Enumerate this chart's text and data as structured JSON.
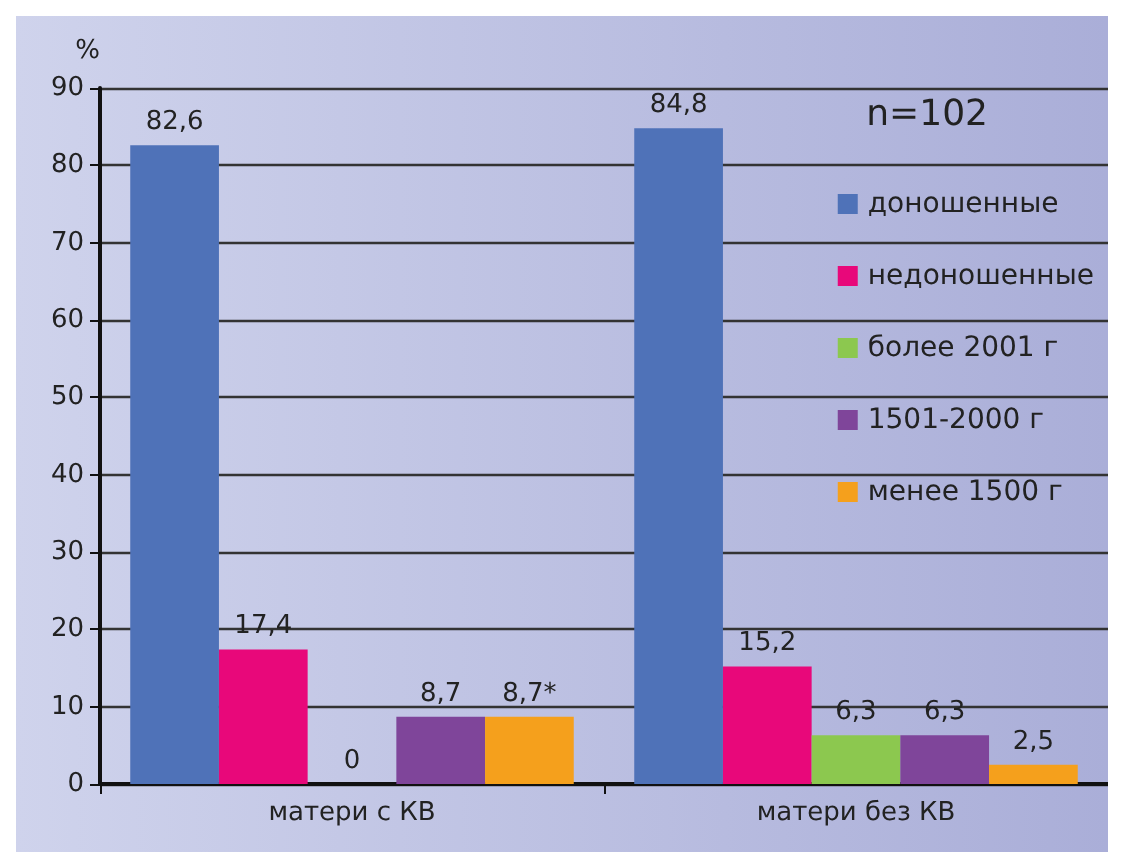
{
  "chart_data": {
    "type": "bar",
    "ylabel": "%",
    "categories": [
      "матери с КВ",
      "матери без КВ"
    ],
    "series": [
      {
        "name": "доношенные",
        "color": "#4f72b8",
        "values": [
          82.6,
          84.8
        ],
        "value_labels": [
          "82,6",
          "84,8"
        ]
      },
      {
        "name": "недоношенные",
        "color": "#e8087a",
        "values": [
          17.4,
          15.2
        ],
        "value_labels": [
          "17,4",
          "15,2"
        ]
      },
      {
        "name": "более 2001 г",
        "color": "#8cc84f",
        "values": [
          0,
          6.3
        ],
        "value_labels": [
          "0",
          "6,3"
        ]
      },
      {
        "name": "1501-2000 г",
        "color": "#7f459a",
        "values": [
          8.7,
          6.3
        ],
        "value_labels": [
          "8,7",
          "6,3"
        ]
      },
      {
        "name": "менее 1500 г",
        "color": "#f5a01c",
        "values": [
          8.7,
          2.5
        ],
        "value_labels": [
          "8,7*",
          "2,5"
        ]
      }
    ],
    "ylim": [
      0,
      90
    ],
    "yticks": [
      0,
      10,
      20,
      30,
      40,
      50,
      60,
      70,
      80,
      90
    ],
    "grid": "y",
    "legend": "right",
    "annotations": [
      "n=102"
    ]
  }
}
